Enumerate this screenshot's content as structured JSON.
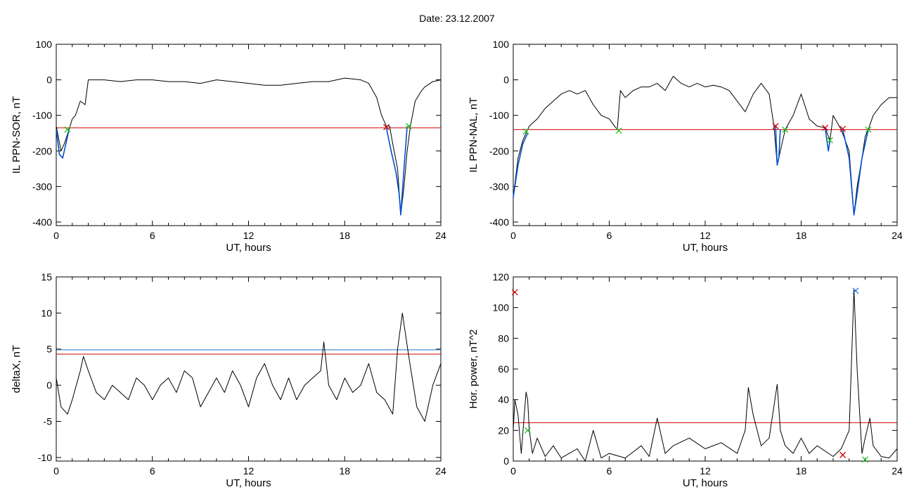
{
  "figure_title": "Date:  23.12.2007",
  "colors": {
    "axes": "#000000",
    "trace": "#000000",
    "blue": "#0050d0",
    "red": "#d00000",
    "green": "#20c020",
    "blue_line": "#1c7ccc",
    "blue_marker": "#2070e0"
  },
  "chart_data": [
    {
      "type": "line",
      "title": "",
      "xlabel": "UT, hours",
      "ylabel": "IL PPN-SOR, nT",
      "xlim": [
        0,
        24
      ],
      "ylim": [
        -410,
        100
      ],
      "xticks": [
        0,
        6,
        12,
        18,
        24
      ],
      "yticks": [
        -400,
        -300,
        -200,
        -100,
        0,
        100
      ],
      "ytick_labels": [
        "-400",
        "-300",
        "-200",
        "-100",
        "0",
        "100"
      ],
      "grid": false,
      "series": [
        {
          "color": "#000000",
          "x": [
            0,
            0.3,
            0.5,
            0.8,
            1.0,
            1.2,
            1.5,
            1.8,
            2.0,
            3.0,
            4.0,
            5.0,
            6.0,
            7.0,
            8.0,
            9.0,
            10.0,
            11.0,
            12.0,
            13.0,
            14.0,
            15.0,
            16.0,
            17.0,
            18.0,
            19.0,
            19.5,
            20.0,
            20.3,
            20.6,
            20.8,
            21.0,
            21.3,
            21.5,
            21.7,
            21.9,
            22.1,
            22.4,
            22.8,
            23.0,
            23.5,
            24.0
          ],
          "y": [
            -130,
            -200,
            -180,
            -140,
            -110,
            -100,
            -60,
            -70,
            0,
            0,
            -5,
            0,
            0,
            -5,
            -5,
            -10,
            0,
            -5,
            -10,
            -15,
            -15,
            -10,
            -5,
            -5,
            5,
            0,
            -10,
            -50,
            -100,
            -130,
            -130,
            -180,
            -250,
            -380,
            -300,
            -200,
            -130,
            -60,
            -30,
            -20,
            -5,
            0
          ]
        },
        {
          "color": "#0050d0",
          "x": [
            0,
            0.2,
            0.4,
            0.6,
            0.8
          ],
          "y": [
            -140,
            -210,
            -220,
            -180,
            -140
          ]
        },
        {
          "color": "#0050d0",
          "x": [
            20.6,
            20.9,
            21.2,
            21.4,
            21.5,
            21.7,
            21.9
          ],
          "y": [
            -135,
            -200,
            -260,
            -320,
            -380,
            -250,
            -130
          ]
        }
      ],
      "threshold": {
        "color": "#d00000",
        "y": -135
      },
      "markers": [
        {
          "color": "#20c020",
          "x": 0.7,
          "y": -140
        },
        {
          "color": "#d00000",
          "x": 20.6,
          "y": -133
        },
        {
          "color": "#20c020",
          "x": 22.0,
          "y": -130
        }
      ]
    },
    {
      "type": "line",
      "title": "",
      "xlabel": "UT, hours",
      "ylabel": "IL PPN-NAL, nT",
      "xlim": [
        0,
        24
      ],
      "ylim": [
        -410,
        100
      ],
      "xticks": [
        0,
        6,
        12,
        18,
        24
      ],
      "yticks": [
        -400,
        -300,
        -200,
        -100,
        0,
        100
      ],
      "ytick_labels": [
        "-400",
        "-300",
        "-200",
        "-100",
        "0",
        "100"
      ],
      "grid": false,
      "series": [
        {
          "color": "#000000",
          "x": [
            0,
            0.3,
            0.6,
            1.0,
            1.5,
            2.0,
            2.5,
            3.0,
            3.5,
            4.0,
            4.5,
            5.0,
            5.5,
            6.0,
            6.5,
            6.7,
            7.0,
            7.5,
            8.0,
            8.5,
            9.0,
            9.5,
            10.0,
            10.5,
            11.0,
            11.5,
            12.0,
            12.5,
            13.0,
            13.5,
            14.0,
            14.5,
            15.0,
            15.5,
            16.0,
            16.3,
            16.5,
            16.7,
            17.0,
            17.5,
            18.0,
            18.5,
            19.0,
            19.5,
            19.8,
            20.0,
            20.5,
            21.0,
            21.3,
            21.5,
            21.8,
            22.0,
            22.2,
            22.5,
            23.0,
            23.5,
            24.0
          ],
          "y": [
            -330,
            -220,
            -170,
            -130,
            -110,
            -80,
            -60,
            -40,
            -30,
            -40,
            -30,
            -70,
            -100,
            -110,
            -140,
            -30,
            -50,
            -30,
            -20,
            -20,
            -10,
            -30,
            10,
            -10,
            -20,
            -10,
            -20,
            -15,
            -20,
            -30,
            -60,
            -90,
            -40,
            -10,
            -40,
            -130,
            -240,
            -200,
            -140,
            -100,
            -40,
            -110,
            -130,
            -135,
            -170,
            -100,
            -140,
            -200,
            -380,
            -300,
            -220,
            -160,
            -140,
            -100,
            -70,
            -50,
            -50
          ]
        },
        {
          "color": "#0050d0",
          "x": [
            0,
            0.3,
            0.6,
            0.9
          ],
          "y": [
            -330,
            -240,
            -180,
            -150
          ]
        },
        {
          "color": "#0050d0",
          "x": [
            16.4,
            16.5,
            16.6,
            16.7
          ],
          "y": [
            -130,
            -240,
            -220,
            -140
          ]
        },
        {
          "color": "#0050d0",
          "x": [
            19.5,
            19.7,
            19.8
          ],
          "y": [
            -135,
            -200,
            -170
          ]
        },
        {
          "color": "#0050d0",
          "x": [
            20.6,
            21.0,
            21.3,
            21.5,
            21.8,
            22.2
          ],
          "y": [
            -140,
            -220,
            -380,
            -320,
            -220,
            -140
          ]
        }
      ],
      "threshold": {
        "color": "#d00000",
        "y": -140
      },
      "markers": [
        {
          "color": "#20c020",
          "x": 0.8,
          "y": -145
        },
        {
          "color": "#20c020",
          "x": 6.6,
          "y": -143
        },
        {
          "color": "#d00000",
          "x": 16.4,
          "y": -130
        },
        {
          "color": "#20c020",
          "x": 17.0,
          "y": -140
        },
        {
          "color": "#d00000",
          "x": 19.5,
          "y": -135
        },
        {
          "color": "#20c020",
          "x": 19.8,
          "y": -170
        },
        {
          "color": "#d00000",
          "x": 20.6,
          "y": -138
        },
        {
          "color": "#20c020",
          "x": 22.2,
          "y": -140
        }
      ]
    },
    {
      "type": "line",
      "title": "",
      "xlabel": "UT, hours",
      "ylabel": "deltaX, nT",
      "xlim": [
        0,
        24
      ],
      "ylim": [
        -10.5,
        15
      ],
      "xticks": [
        0,
        6,
        12,
        18,
        24
      ],
      "yticks": [
        -10,
        -5,
        0,
        5,
        10,
        15
      ],
      "ytick_labels": [
        "-10",
        "-5",
        "0",
        "5",
        "10",
        "15"
      ],
      "grid": false,
      "series": [
        {
          "color": "#000000",
          "x": [
            0,
            0.3,
            0.7,
            1.0,
            1.5,
            1.7,
            2.0,
            2.5,
            3.0,
            3.5,
            4.0,
            4.5,
            5.0,
            5.5,
            6.0,
            6.5,
            7.0,
            7.5,
            8.0,
            8.5,
            9.0,
            9.5,
            10.0,
            10.5,
            11.0,
            11.5,
            12.0,
            12.5,
            13.0,
            13.5,
            14.0,
            14.5,
            15.0,
            15.5,
            16.0,
            16.5,
            16.7,
            17.0,
            17.5,
            18.0,
            18.5,
            19.0,
            19.5,
            20.0,
            20.5,
            21.0,
            21.3,
            21.6,
            22.0,
            22.5,
            23.0,
            23.5,
            24.0
          ],
          "y": [
            1,
            -3,
            -4,
            -2,
            2,
            4,
            2,
            -1,
            -2,
            0,
            -1,
            -2,
            1,
            0,
            -2,
            0,
            1,
            -1,
            2,
            1,
            -3,
            -1,
            1,
            -1,
            2,
            0,
            -3,
            1,
            3,
            0,
            -2,
            1,
            -2,
            0,
            1,
            2,
            6,
            0,
            -2,
            1,
            -1,
            0,
            3,
            -1,
            -2,
            -4,
            5,
            10,
            4,
            -3,
            -5,
            0,
            3
          ]
        }
      ],
      "thresholds": [
        {
          "color": "#1c7ccc",
          "y": 4.9
        },
        {
          "color": "#d00000",
          "y": 4.3
        }
      ],
      "markers": []
    },
    {
      "type": "line",
      "title": "",
      "xlabel": "UT, hours",
      "ylabel": "Hor. power, nT^2",
      "xlim": [
        0,
        24
      ],
      "ylim": [
        0,
        120
      ],
      "xticks": [
        0,
        6,
        12,
        18,
        24
      ],
      "yticks": [
        0,
        20,
        40,
        60,
        80,
        100,
        120
      ],
      "ytick_labels": [
        "0",
        "20",
        "40",
        "60",
        "80",
        "100",
        "120"
      ],
      "grid": false,
      "series": [
        {
          "color": "#000000",
          "x": [
            0,
            0.1,
            0.3,
            0.5,
            0.8,
            0.9,
            1.0,
            1.2,
            1.5,
            2.0,
            2.5,
            3.0,
            3.5,
            4.0,
            4.5,
            5.0,
            5.5,
            6.0,
            7.0,
            8.0,
            8.5,
            9.0,
            9.5,
            10.0,
            11.0,
            12.0,
            13.0,
            14.0,
            14.5,
            14.7,
            15.0,
            15.5,
            16.0,
            16.5,
            16.7,
            17.0,
            17.5,
            18.0,
            18.5,
            19.0,
            20.0,
            20.5,
            21.0,
            21.3,
            21.5,
            21.8,
            22.0,
            22.3,
            22.5,
            23.0,
            23.5,
            24.0
          ],
          "y": [
            20,
            40,
            30,
            5,
            45,
            40,
            20,
            5,
            15,
            3,
            10,
            2,
            5,
            8,
            0,
            20,
            2,
            5,
            2,
            10,
            3,
            28,
            5,
            10,
            15,
            8,
            12,
            5,
            20,
            48,
            30,
            10,
            15,
            50,
            20,
            10,
            5,
            15,
            5,
            10,
            3,
            8,
            20,
            112,
            60,
            5,
            15,
            28,
            10,
            3,
            2,
            8
          ]
        }
      ],
      "threshold": {
        "color": "#d00000",
        "y": 25
      },
      "markers": [
        {
          "color": "#d00000",
          "x": 0.1,
          "y": 110
        },
        {
          "color": "#20c020",
          "x": 0.9,
          "y": 20
        },
        {
          "color": "#d00000",
          "x": 20.6,
          "y": 4
        },
        {
          "color": "#2070e0",
          "x": 21.4,
          "y": 111
        },
        {
          "color": "#20c020",
          "x": 22.0,
          "y": 1
        }
      ]
    }
  ]
}
